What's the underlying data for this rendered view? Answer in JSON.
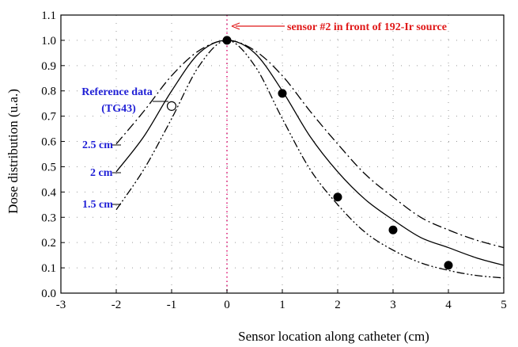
{
  "chart_data": {
    "type": "scatter",
    "title": "",
    "xlabel": "Sensor location along catheter (cm)",
    "ylabel": "Dose distribution (u.a.)",
    "xlim": [
      -3,
      5
    ],
    "ylim": [
      0.0,
      1.1
    ],
    "x_ticks": [
      "-3",
      "-2",
      "-1",
      "0",
      "1",
      "2",
      "3",
      "4",
      "5"
    ],
    "y_ticks": [
      "0.0",
      "0.1",
      "0.2",
      "0.3",
      "0.4",
      "0.5",
      "0.6",
      "0.7",
      "0.8",
      "0.9",
      "1.0",
      "1.1"
    ],
    "grid": "dotted",
    "series": [
      {
        "name": "2.5 cm",
        "style": "dash-dot",
        "x": [
          -2,
          -1.5,
          -1,
          -0.5,
          0,
          0.5,
          1,
          1.5,
          2,
          2.5,
          3,
          3.5,
          4,
          4.5,
          5
        ],
        "values": [
          0.59,
          0.72,
          0.86,
          0.96,
          1.0,
          0.96,
          0.86,
          0.72,
          0.59,
          0.47,
          0.38,
          0.3,
          0.25,
          0.21,
          0.18
        ]
      },
      {
        "name": "2 cm",
        "style": "solid",
        "x": [
          -2,
          -1.5,
          -1,
          -0.5,
          0,
          0.5,
          1,
          1.5,
          2,
          2.5,
          3,
          3.5,
          4,
          4.5,
          5
        ],
        "values": [
          0.48,
          0.62,
          0.8,
          0.95,
          1.0,
          0.95,
          0.8,
          0.62,
          0.48,
          0.37,
          0.29,
          0.22,
          0.18,
          0.14,
          0.11
        ]
      },
      {
        "name": "1.5 cm",
        "style": "dash-dot-dot",
        "x": [
          -2,
          -1.5,
          -1,
          -0.5,
          0,
          0.5,
          1,
          1.5,
          2,
          2.5,
          3,
          3.5,
          4,
          4.5,
          5
        ],
        "values": [
          0.33,
          0.49,
          0.69,
          0.9,
          1.0,
          0.9,
          0.69,
          0.49,
          0.35,
          0.24,
          0.17,
          0.12,
          0.09,
          0.07,
          0.06
        ]
      }
    ],
    "measured_points": {
      "filled": [
        {
          "x": 0,
          "y": 1.0
        },
        {
          "x": 1,
          "y": 0.79
        },
        {
          "x": 2,
          "y": 0.38
        },
        {
          "x": 3,
          "y": 0.25
        },
        {
          "x": 4,
          "y": 0.11
        }
      ],
      "open": [
        {
          "x": -1,
          "y": 0.74
        }
      ]
    },
    "reference_line_x": 0,
    "annotations": {
      "reference_label_line1": "Reference data",
      "reference_label_line2": "(TG43)",
      "label_2_5cm": "2.5 cm",
      "label_2cm": "2 cm",
      "label_1_5cm": "1.5 cm",
      "sensor_label": "sensor #2 in front of 192-Ir source"
    },
    "colors": {
      "labels": "#1f1fd6",
      "sensor_label": "#e01818",
      "reference_line": "#e0207a"
    }
  }
}
